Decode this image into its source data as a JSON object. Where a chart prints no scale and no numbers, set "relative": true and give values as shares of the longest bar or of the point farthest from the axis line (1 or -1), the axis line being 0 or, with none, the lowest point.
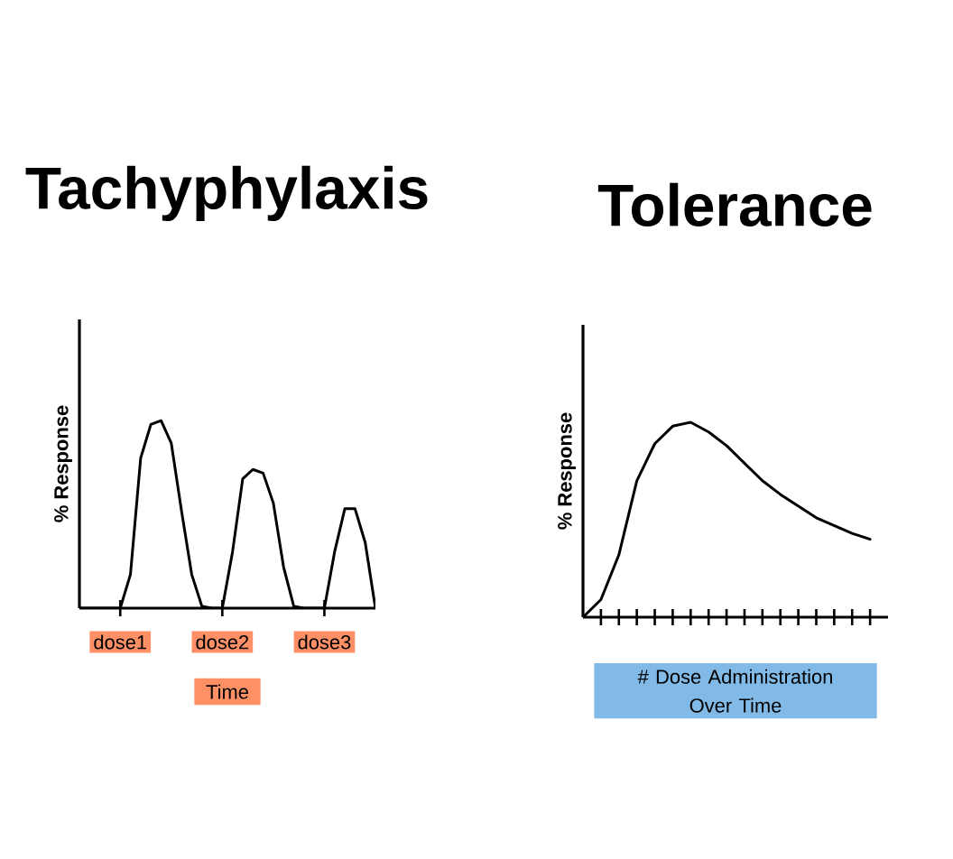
{
  "chart_data": [
    {
      "type": "line",
      "title": "Tachyphylaxis",
      "xlabel": "Time",
      "ylabel": "% Response",
      "relative": true,
      "tick_labels": "x",
      "marker": "none",
      "line_style": "solid",
      "categories": [
        null,
        null,
        null,
        null,
        "dose1",
        null,
        null,
        null,
        null,
        null,
        null,
        null,
        null,
        null,
        "dose2",
        null,
        null,
        null,
        null,
        null,
        null,
        null,
        null,
        null,
        "dose3",
        null,
        null,
        null,
        null,
        null
      ],
      "series": [
        {
          "color": "#000000",
          "values": [
            0,
            0,
            0,
            0,
            0,
            0.18,
            0.8,
            0.98,
            1,
            0.88,
            0.52,
            0.18,
            0.01,
            0,
            0,
            0.3,
            0.69,
            0.74,
            0.72,
            0.56,
            0.22,
            0.01,
            0,
            0,
            0,
            0.3,
            0.53,
            0.53,
            0.35,
            0
          ]
        }
      ]
    },
    {
      "type": "line",
      "title": "Tolerance",
      "xlabel": "# Dose Administration Over Time",
      "ylabel": "% Response",
      "relative": true,
      "tick_labels": false,
      "marker": "none",
      "line_style": "solid",
      "categories": [
        null,
        null,
        null,
        null,
        null,
        null,
        null,
        null,
        null,
        null,
        null,
        null,
        null,
        null,
        null,
        null,
        null,
        null
      ],
      "series": [
        {
          "color": "#000000",
          "values": [
            0,
            0.09,
            0.32,
            0.7,
            0.89,
            0.98,
            1,
            0.95,
            0.88,
            0.79,
            0.7,
            0.63,
            0.57,
            0.51,
            0.47,
            0.43,
            0.4,
            null
          ]
        }
      ]
    }
  ]
}
